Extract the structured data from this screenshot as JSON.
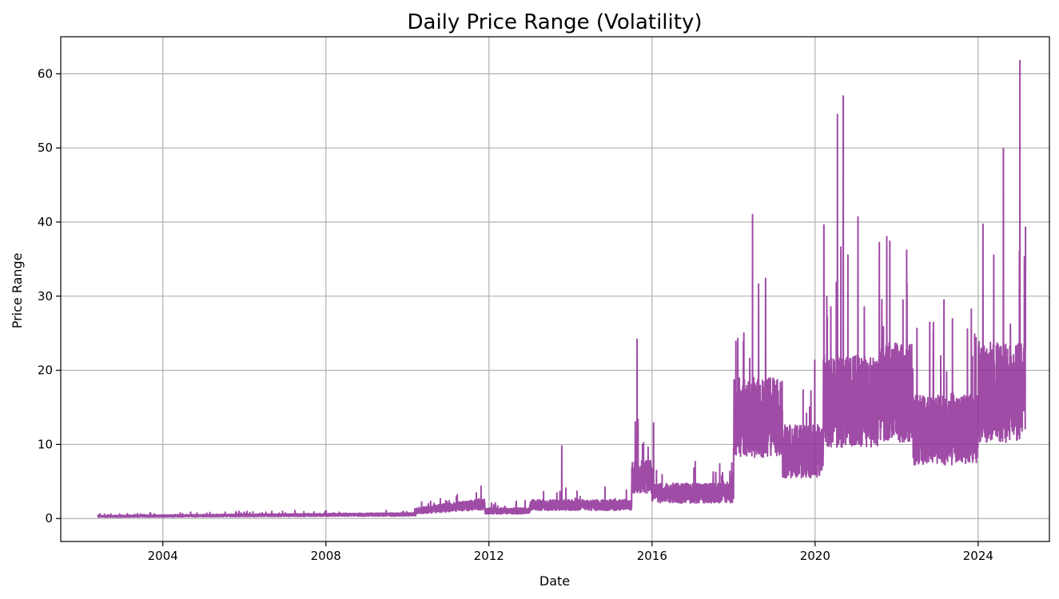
{
  "chart_data": {
    "type": "line",
    "title": "Daily Price Range (Volatility)",
    "xlabel": "Date",
    "ylabel": "Price Range",
    "x_axis": {
      "type": "date",
      "range": [
        "2001-07-01",
        "2025-10-01"
      ],
      "ticks": [
        "2004-01-01",
        "2008-01-01",
        "2012-01-01",
        "2016-01-01",
        "2020-01-01",
        "2024-01-01"
      ],
      "tick_labels": [
        "2004",
        "2008",
        "2012",
        "2016",
        "2020",
        "2024"
      ]
    },
    "y_axis": {
      "range": [
        -3.1,
        65
      ],
      "ticks": [
        0,
        10,
        20,
        30,
        40,
        50,
        60
      ],
      "tick_labels": [
        "0",
        "10",
        "20",
        "30",
        "40",
        "50",
        "60"
      ]
    },
    "grid": true,
    "series": [
      {
        "color": "#8e2d96",
        "opacity": 0.85,
        "key_points": [
          {
            "date": "2002-06-01",
            "value": 0.2
          },
          {
            "date": "2004-01-01",
            "value": 0.4
          },
          {
            "date": "2006-01-01",
            "value": 0.3
          },
          {
            "date": "2008-01-01",
            "value": 0.35
          },
          {
            "date": "2009-06-01",
            "value": 0.6
          },
          {
            "date": "2010-03-01",
            "value": 0.8
          },
          {
            "date": "2011-06-01",
            "value": 1.8
          },
          {
            "date": "2012-06-01",
            "value": 0.8
          },
          {
            "date": "2013-06-01",
            "value": 1.5
          },
          {
            "date": "2013-10-15",
            "value": 9.8
          },
          {
            "date": "2015-04-01",
            "value": 2.0
          },
          {
            "date": "2015-08-20",
            "value": 24.2
          },
          {
            "date": "2016-01-15",
            "value": 12.9
          },
          {
            "date": "2016-09-01",
            "value": 3.0
          },
          {
            "date": "2017-10-01",
            "value": 5.0
          },
          {
            "date": "2018-06-20",
            "value": 41.0
          },
          {
            "date": "2018-10-15",
            "value": 32.4
          },
          {
            "date": "2019-06-01",
            "value": 10.0
          },
          {
            "date": "2020-03-20",
            "value": 39.6
          },
          {
            "date": "2020-07-20",
            "value": 54.5
          },
          {
            "date": "2020-09-10",
            "value": 57.0
          },
          {
            "date": "2021-01-20",
            "value": 40.7
          },
          {
            "date": "2021-11-01",
            "value": 37.4
          },
          {
            "date": "2022-04-01",
            "value": 36.2
          },
          {
            "date": "2022-08-01",
            "value": 12.0
          },
          {
            "date": "2023-03-01",
            "value": 29.5
          },
          {
            "date": "2023-09-01",
            "value": 10.0
          },
          {
            "date": "2024-08-15",
            "value": 49.9
          },
          {
            "date": "2025-01-10",
            "value": 61.8
          },
          {
            "date": "2025-03-01",
            "value": 39.4
          }
        ]
      }
    ]
  }
}
